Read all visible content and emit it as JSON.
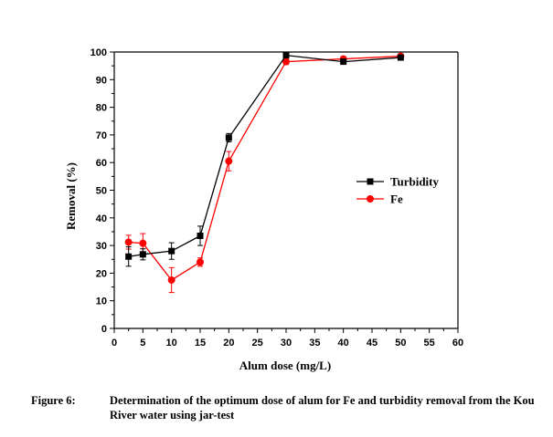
{
  "chart_data": {
    "type": "line",
    "xlabel": "Alum dose (mg/L)",
    "ylabel": "Removal (%)",
    "xlim": [
      0,
      60
    ],
    "ylim": [
      0,
      100
    ],
    "xticks": [
      0,
      5,
      10,
      15,
      20,
      25,
      30,
      35,
      40,
      45,
      50,
      55,
      60
    ],
    "yticks": [
      0,
      10,
      20,
      30,
      40,
      50,
      60,
      70,
      80,
      90,
      100
    ],
    "grid": false,
    "legend_position": "right-middle",
    "series": [
      {
        "name": "Turbidity",
        "color": "#000000",
        "marker": "square",
        "x": [
          2.5,
          5,
          10,
          15,
          20,
          30,
          40,
          50
        ],
        "y": [
          26,
          26.8,
          28,
          33.5,
          69,
          98.8,
          96.5,
          98
        ],
        "err": [
          3.5,
          2,
          3,
          3.5,
          1.5,
          0.5,
          0.8,
          0.5
        ]
      },
      {
        "name": "Fe",
        "color": "#ff0000",
        "marker": "circle",
        "x": [
          2.5,
          5,
          10,
          15,
          20,
          30,
          40,
          50
        ],
        "y": [
          31.2,
          30.8,
          17.5,
          24,
          60.5,
          96.5,
          97.5,
          98.5
        ],
        "err": [
          2.5,
          3.5,
          4.5,
          1.5,
          3.5,
          1,
          0.8,
          0.5
        ]
      }
    ]
  },
  "caption": {
    "number": "Figure 6:",
    "text": "Determination of the optimum dose of alum for Fe and turbidity removal from the Kou River water using jar-test"
  }
}
